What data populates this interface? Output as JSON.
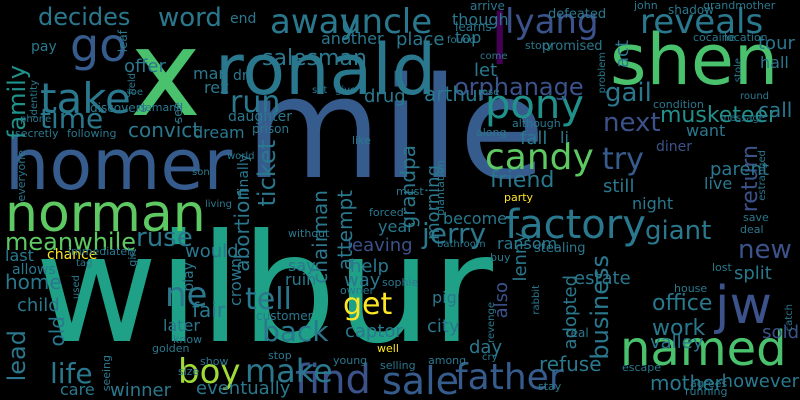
{
  "word_cloud": {
    "background": "#000000",
    "palette": {
      "yellow": "#fde725",
      "lime": "#a0da39",
      "green": "#4ac16d",
      "teal": "#1fa187",
      "tealblue": "#277f8e",
      "blue": "#365c8d",
      "indigo": "#46327e",
      "purple": "#440154"
    },
    "words": [
      {
        "id": "wilbur",
        "text": "wilbur",
        "color": "#1fa187"
      },
      {
        "id": "mile",
        "text": "mile",
        "color": "#365c8d"
      },
      {
        "id": "x",
        "text": "x",
        "color": "#4ac16d"
      },
      {
        "id": "homer",
        "text": "homer",
        "color": "#365c8d"
      },
      {
        "id": "ronald",
        "text": "ronald",
        "color": "#2a788e"
      },
      {
        "id": "shen",
        "text": "shen",
        "color": "#4ac16d"
      },
      {
        "id": "norman",
        "text": "norman",
        "color": "#5ec962"
      },
      {
        "id": "named",
        "text": "named",
        "color": "#4ac16d"
      },
      {
        "id": "factory",
        "text": "factory",
        "color": "#2a788e"
      },
      {
        "id": "l",
        "text": "l",
        "color": "#440154"
      },
      {
        "id": "find",
        "text": "find",
        "color": "#3b528b"
      },
      {
        "id": "sale",
        "text": "sale",
        "color": "#365c8d"
      },
      {
        "id": "jw",
        "text": "jw",
        "color": "#3b528b"
      },
      {
        "id": "father",
        "text": "father",
        "color": "#365c8d"
      },
      {
        "id": "go",
        "text": "go",
        "color": "#365c8d"
      },
      {
        "id": "take",
        "text": "take",
        "color": "#2a788e"
      },
      {
        "id": "pony",
        "text": "pony",
        "color": "#21918c"
      },
      {
        "id": "candy",
        "text": "candy",
        "color": "#5ec962"
      },
      {
        "id": "away",
        "text": "away",
        "color": "#2a788e"
      },
      {
        "id": "uncle",
        "text": "uncle",
        "color": "#2a788e"
      },
      {
        "id": "lyang",
        "text": "lyang",
        "color": "#3b528b"
      },
      {
        "id": "reveals",
        "text": "reveals",
        "color": "#2a788e"
      },
      {
        "id": "word",
        "text": "word",
        "color": "#2a788e"
      },
      {
        "id": "decides",
        "text": "decides",
        "color": "#2a788e"
      },
      {
        "id": "family",
        "text": "family",
        "color": "#21918c"
      },
      {
        "id": "time",
        "text": "time",
        "color": "#2a788e"
      },
      {
        "id": "run",
        "text": "run",
        "color": "#2a788e"
      },
      {
        "id": "salesman",
        "text": "salesman",
        "color": "#2a788e"
      },
      {
        "id": "orphanage",
        "text": "orphanage",
        "color": "#3b528b"
      },
      {
        "id": "gail",
        "text": "gail",
        "color": "#2a788e"
      },
      {
        "id": "musketeer",
        "text": "musketeer",
        "color": "#21918c"
      },
      {
        "id": "tour",
        "text": "tour",
        "color": "#2a788e"
      },
      {
        "id": "hall",
        "text": "hall",
        "color": "#2a788e"
      },
      {
        "id": "call",
        "text": "call",
        "color": "#2a788e"
      },
      {
        "id": "return",
        "text": "return",
        "color": "#3b528b"
      },
      {
        "id": "try",
        "text": "try",
        "color": "#365c8d"
      },
      {
        "id": "next",
        "text": "next",
        "color": "#3b528b"
      },
      {
        "id": "ticket",
        "text": "ticket",
        "color": "#2a788e"
      },
      {
        "id": "jerry",
        "text": "jerry",
        "color": "#2a788e"
      },
      {
        "id": "tell",
        "text": "tell",
        "color": "#2a788e"
      },
      {
        "id": "get",
        "text": "get",
        "color": "#fde725"
      },
      {
        "id": "back",
        "text": "back",
        "color": "#2a788e"
      },
      {
        "id": "make",
        "text": "make",
        "color": "#2a788e"
      },
      {
        "id": "boy",
        "text": "boy",
        "color": "#a0da39"
      },
      {
        "id": "life",
        "text": "life",
        "color": "#2a788e"
      },
      {
        "id": "lead",
        "text": "lead",
        "color": "#2a788e"
      },
      {
        "id": "ne",
        "text": "ne",
        "color": "#2a788e"
      },
      {
        "id": "meanwhile",
        "text": "meanwhile",
        "color": "#5ec962"
      },
      {
        "id": "ruse",
        "text": "ruse",
        "color": "#2a788e"
      },
      {
        "id": "giant",
        "text": "giant",
        "color": "#2a788e"
      },
      {
        "id": "new",
        "text": "new",
        "color": "#3b528b"
      },
      {
        "id": "business",
        "text": "business",
        "color": "#2a788e"
      },
      {
        "id": "friend",
        "text": "friend",
        "color": "#2a788e"
      },
      {
        "id": "grandpa",
        "text": "grandpa",
        "color": "#2a788e"
      },
      {
        "id": "chairman",
        "text": "chairman",
        "color": "#2a788e"
      },
      {
        "id": "convict",
        "text": "convict",
        "color": "#2a788e"
      },
      {
        "id": "drug",
        "text": "drug",
        "color": "#2a788e"
      },
      {
        "id": "arthur",
        "text": "arthur",
        "color": "#2a788e"
      },
      {
        "id": "let",
        "text": "let",
        "color": "#2a788e"
      },
      {
        "id": "dream",
        "text": "dream",
        "color": "#2a788e"
      },
      {
        "id": "office",
        "text": "office",
        "color": "#2a788e"
      },
      {
        "id": "work",
        "text": "work",
        "color": "#2a788e"
      },
      {
        "id": "split",
        "text": "split",
        "color": "#2a788e"
      },
      {
        "id": "sold",
        "text": "sold",
        "color": "#3b528b"
      },
      {
        "id": "valley",
        "text": "valley",
        "color": "#2a788e"
      },
      {
        "id": "however",
        "text": "however",
        "color": "#2a788e"
      },
      {
        "id": "mother",
        "text": "mother",
        "color": "#2a788e"
      },
      {
        "id": "parent",
        "text": "parent",
        "color": "#2a788e"
      },
      {
        "id": "live",
        "text": "live",
        "color": "#2a788e"
      },
      {
        "id": "want",
        "text": "want",
        "color": "#2a788e"
      },
      {
        "id": "diner",
        "text": "diner",
        "color": "#3b528b"
      },
      {
        "id": "still",
        "text": "still",
        "color": "#2a788e"
      },
      {
        "id": "night",
        "text": "night",
        "color": "#2a788e"
      },
      {
        "id": "estate",
        "text": "estate",
        "color": "#2a788e"
      },
      {
        "id": "city",
        "text": "city",
        "color": "#2a788e"
      },
      {
        "id": "pig",
        "text": "pig",
        "color": "#2a788e"
      },
      {
        "id": "captor",
        "text": "captor",
        "color": "#2a788e"
      },
      {
        "id": "help",
        "text": "help",
        "color": "#2a788e"
      },
      {
        "id": "way",
        "text": "way",
        "color": "#2a788e"
      },
      {
        "id": "year",
        "text": "year",
        "color": "#2a788e"
      },
      {
        "id": "leaving",
        "text": "leaving",
        "color": "#3b528b"
      },
      {
        "id": "attempt",
        "text": "attempt",
        "color": "#2a788e"
      },
      {
        "id": "abortion",
        "text": "abortion",
        "color": "#2a788e"
      },
      {
        "id": "crown",
        "text": "crown",
        "color": "#2a788e"
      },
      {
        "id": "fair",
        "text": "fair",
        "color": "#2a788e"
      },
      {
        "id": "later",
        "text": "later",
        "color": "#2a788e"
      },
      {
        "id": "would",
        "text": "would",
        "color": "#2a788e"
      },
      {
        "id": "home",
        "text": "home",
        "color": "#2a788e"
      },
      {
        "id": "child",
        "text": "child",
        "color": "#2a788e"
      },
      {
        "id": "old",
        "text": "old",
        "color": "#2a788e"
      },
      {
        "id": "care",
        "text": "care",
        "color": "#2a788e"
      },
      {
        "id": "winner",
        "text": "winner",
        "color": "#2a788e"
      },
      {
        "id": "eventually",
        "text": "eventually",
        "color": "#2a788e"
      },
      {
        "id": "refuse",
        "text": "refuse",
        "color": "#2a788e"
      },
      {
        "id": "day",
        "text": "day",
        "color": "#2a788e"
      },
      {
        "id": "also",
        "text": "also",
        "color": "#3b528b"
      },
      {
        "id": "lenny",
        "text": "lenny",
        "color": "#2a788e"
      },
      {
        "id": "adopted",
        "text": "adopted",
        "color": "#2a788e"
      },
      {
        "id": "ransom",
        "text": "ransom",
        "color": "#2a788e"
      },
      {
        "id": "become",
        "text": "become",
        "color": "#2a788e"
      },
      {
        "id": "say",
        "text": "say",
        "color": "#2a788e"
      },
      {
        "id": "ruin",
        "text": "ruin",
        "color": "#2a788e"
      },
      {
        "id": "morning",
        "text": "morning",
        "color": "#2a788e"
      },
      {
        "id": "fall",
        "text": "fall",
        "color": "#2a788e"
      },
      {
        "id": "li",
        "text": "li",
        "color": "#2a788e"
      },
      {
        "id": "act",
        "text": "act",
        "color": "#2a788e"
      },
      {
        "id": "though",
        "text": "though",
        "color": "#2a788e"
      },
      {
        "id": "place",
        "text": "place",
        "color": "#2a788e"
      },
      {
        "id": "another",
        "text": "another",
        "color": "#2a788e"
      },
      {
        "id": "top",
        "text": "top",
        "color": "#2a788e"
      },
      {
        "id": "offer",
        "text": "offer",
        "color": "#2a788e"
      },
      {
        "id": "man",
        "text": "man",
        "color": "#2a788e"
      },
      {
        "id": "rex",
        "text": "rex",
        "color": "#2a788e"
      },
      {
        "id": "dr",
        "text": "dr",
        "color": "#2a788e"
      },
      {
        "id": "daughter",
        "text": "daughter",
        "color": "#2a788e"
      },
      {
        "id": "finally",
        "text": "finally",
        "color": "#2a788e"
      },
      {
        "id": "end",
        "text": "end",
        "color": "#2a788e"
      },
      {
        "id": "pay",
        "text": "pay",
        "color": "#2a788e"
      },
      {
        "id": "see",
        "text": "see",
        "color": "#2a788e"
      },
      {
        "id": "leaf",
        "text": "leaf",
        "color": "#2a788e"
      },
      {
        "id": "last",
        "text": "last",
        "color": "#2a788e"
      },
      {
        "id": "allows",
        "text": "allows",
        "color": "#2a788e"
      },
      {
        "id": "chance",
        "text": "chance",
        "color": "#fde725"
      },
      {
        "id": "defeated",
        "text": "defeated",
        "color": "#2a788e"
      },
      {
        "id": "arrive",
        "text": "arrive",
        "color": "#2a788e"
      },
      {
        "id": "learns",
        "text": "learns",
        "color": "#2a788e"
      },
      {
        "id": "promised",
        "text": "promised",
        "color": "#2a788e"
      },
      {
        "id": "story",
        "text": "story",
        "color": "#2a788e"
      },
      {
        "id": "john",
        "text": "john",
        "color": "#2a788e"
      },
      {
        "id": "shadow",
        "text": "shadow",
        "color": "#2a788e"
      },
      {
        "id": "grandmother",
        "text": "grandmother",
        "color": "#2a788e"
      },
      {
        "id": "cocaine",
        "text": "cocaine",
        "color": "#2a788e"
      },
      {
        "id": "location",
        "text": "location",
        "color": "#2a788e"
      },
      {
        "id": "round",
        "text": "round",
        "color": "#2a788e"
      },
      {
        "id": "message",
        "text": "message",
        "color": "#2a788e"
      },
      {
        "id": "condition",
        "text": "condition",
        "color": "#2a788e"
      },
      {
        "id": "demand",
        "text": "demand",
        "color": "#2a788e"
      },
      {
        "id": "discovers",
        "text": "discovers",
        "color": "#2a788e"
      },
      {
        "id": "prison",
        "text": "prison",
        "color": "#2a788e"
      },
      {
        "id": "although",
        "text": "although",
        "color": "#2a788e"
      },
      {
        "id": "along",
        "text": "along",
        "color": "#2a788e"
      },
      {
        "id": "like",
        "text": "like",
        "color": "#2a788e"
      },
      {
        "id": "party",
        "text": "party",
        "color": "#fde725"
      },
      {
        "id": "must",
        "text": "must",
        "color": "#2a788e"
      },
      {
        "id": "without",
        "text": "without",
        "color": "#2a788e"
      },
      {
        "id": "forced",
        "text": "forced",
        "color": "#2a788e"
      },
      {
        "id": "stealing",
        "text": "stealing",
        "color": "#2a788e"
      },
      {
        "id": "deal",
        "text": "deal",
        "color": "#2a788e"
      },
      {
        "id": "save",
        "text": "save",
        "color": "#2a788e"
      },
      {
        "id": "lost",
        "text": "lost",
        "color": "#2a788e"
      },
      {
        "id": "house",
        "text": "house",
        "color": "#2a788e"
      },
      {
        "id": "buy",
        "text": "buy",
        "color": "#2a788e"
      },
      {
        "id": "real",
        "text": "real",
        "color": "#2a788e"
      },
      {
        "id": "escape",
        "text": "escape",
        "color": "#2a788e"
      },
      {
        "id": "agrees",
        "text": "agrees",
        "color": "#2a788e"
      },
      {
        "id": "running",
        "text": "running",
        "color": "#2a788e"
      },
      {
        "id": "among",
        "text": "among",
        "color": "#2a788e"
      },
      {
        "id": "stop",
        "text": "stop",
        "color": "#2a788e"
      },
      {
        "id": "young",
        "text": "young",
        "color": "#2a788e"
      },
      {
        "id": "well",
        "text": "well",
        "color": "#fde725"
      },
      {
        "id": "customer",
        "text": "customer",
        "color": "#2a788e"
      },
      {
        "id": "sophie",
        "text": "sophie",
        "color": "#2a788e"
      },
      {
        "id": "owner",
        "text": "owner",
        "color": "#2a788e"
      },
      {
        "id": "show",
        "text": "show",
        "color": "#2a788e"
      },
      {
        "id": "know",
        "text": "know",
        "color": "#2a788e"
      },
      {
        "id": "golden",
        "text": "golden",
        "color": "#2a788e"
      },
      {
        "id": "size",
        "text": "size",
        "color": "#2a788e"
      },
      {
        "id": "stay",
        "text": "stay",
        "color": "#2a788e"
      },
      {
        "id": "cry",
        "text": "cry",
        "color": "#2a788e"
      },
      {
        "id": "selling",
        "text": "selling",
        "color": "#2a788e"
      },
      {
        "id": "used",
        "text": "used",
        "color": "#2a788e"
      },
      {
        "id": "tag",
        "text": "tag",
        "color": "#2a788e"
      },
      {
        "id": "immediately",
        "text": "immediately",
        "color": "#2a788e"
      },
      {
        "id": "girl",
        "text": "girl",
        "color": "#2a788e"
      },
      {
        "id": "seeing",
        "text": "seeing",
        "color": "#2a788e"
      },
      {
        "id": "everyone",
        "text": "everyone",
        "color": "#2a788e"
      },
      {
        "id": "secretly",
        "text": "secretly",
        "color": "#2a788e"
      },
      {
        "id": "following",
        "text": "following",
        "color": "#2a788e"
      },
      {
        "id": "phone",
        "text": "phone",
        "color": "#2a788e"
      },
      {
        "id": "identity",
        "text": "identity",
        "color": "#2a788e"
      },
      {
        "id": "joe",
        "text": "joe",
        "color": "#2a788e"
      },
      {
        "id": "field",
        "text": "field",
        "color": "#2a788e"
      },
      {
        "id": "set",
        "text": "set",
        "color": "#2a788e"
      },
      {
        "id": "give",
        "text": "give",
        "color": "#2a788e"
      },
      {
        "id": "rose",
        "text": "rose",
        "color": "#2a788e"
      },
      {
        "id": "come",
        "text": "come",
        "color": "#2a788e"
      },
      {
        "id": "found",
        "text": "found",
        "color": "#2a788e"
      },
      {
        "id": "world",
        "text": "world",
        "color": "#2a788e"
      },
      {
        "id": "son",
        "text": "son",
        "color": "#2a788e"
      },
      {
        "id": "living",
        "text": "living",
        "color": "#2a788e"
      },
      {
        "id": "plantation",
        "text": "plantation",
        "color": "#2a788e"
      },
      {
        "id": "problem",
        "text": "problem",
        "color": "#2a788e"
      },
      {
        "id": "estranged",
        "text": "estranged",
        "color": "#2a788e"
      },
      {
        "id": "stole",
        "text": "stole",
        "color": "#2a788e"
      },
      {
        "id": "catch",
        "text": "catch",
        "color": "#2a788e"
      },
      {
        "id": "revenge",
        "text": "revenge",
        "color": "#2a788e"
      },
      {
        "id": "rabbit",
        "text": "rabbit",
        "color": "#2a788e"
      },
      {
        "id": "bathroom",
        "text": "bathroom",
        "color": "#2a788e"
      },
      {
        "id": "play",
        "text": "play",
        "color": "#2a788e"
      }
    ]
  }
}
